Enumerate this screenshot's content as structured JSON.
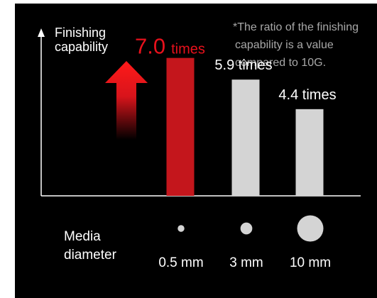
{
  "chart_data": {
    "type": "bar",
    "ylabel_lines": [
      "Finishing",
      "capability"
    ],
    "xlabel_lines": [
      "Media",
      "diameter"
    ],
    "note_lines": [
      "*The ratio of the finishing",
      "capability is a value",
      "compared to 10G."
    ],
    "categories": [
      "0.5 mm",
      "3 mm",
      "10 mm"
    ],
    "values": [
      7.0,
      5.9,
      4.4
    ],
    "value_labels": [
      {
        "number": "7.0",
        "unit": "times"
      },
      {
        "number": "",
        "unit": "5.9 times"
      },
      {
        "number": "",
        "unit": "4.4 times"
      }
    ],
    "media_diameters_mm": [
      0.5,
      3,
      10
    ],
    "highlight_index": 0,
    "ylim": [
      0,
      8.5
    ],
    "grid": false,
    "legend": "none"
  },
  "colors": {
    "background": "#000000",
    "highlight_bar": "#c4161c",
    "normal_bar": "#d4d4d4",
    "highlight_text": "#e8111c",
    "text": "#ffffff",
    "note_text": "#a8a8a8",
    "arrow": "#e4141b"
  },
  "icons": {
    "up_arrow": "up-arrow-icon",
    "axis_arrow": "axis-arrow-icon"
  }
}
